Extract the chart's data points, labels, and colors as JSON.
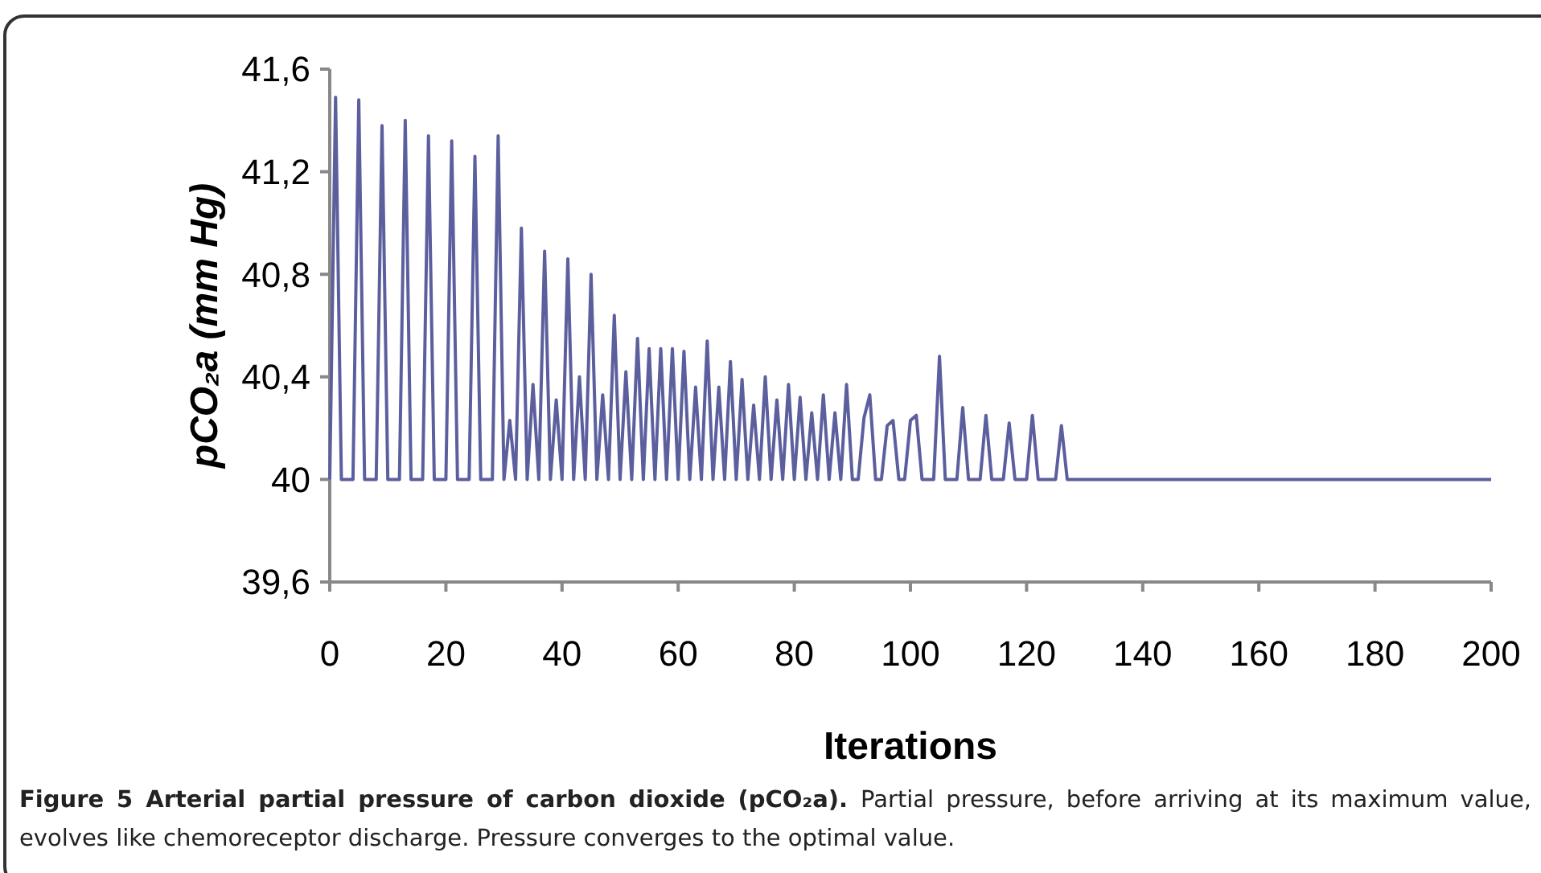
{
  "chart_data": {
    "type": "line",
    "xlabel": "Iterations",
    "ylabel": "pCO₂a (mm Hg)",
    "annotations": [
      "Figure 5 Arterial partial pressure of carbon dioxide (pCO₂a).",
      "Partial pressure, before arriving at its maximum value, evolves like chemoreceptor discharge. Pressure converges to the optimal value."
    ],
    "xlim": [
      0,
      200
    ],
    "xticks": [
      0,
      20,
      40,
      60,
      80,
      100,
      120,
      140,
      160,
      180,
      200
    ],
    "ylim": [
      39.6,
      41.6
    ],
    "yticks": [
      {
        "value": 39.6,
        "label": "39,6"
      },
      {
        "value": 40,
        "label": "40"
      },
      {
        "value": 40.4,
        "label": "40,4"
      },
      {
        "value": 40.8,
        "label": "40,8"
      },
      {
        "value": 41.2,
        "label": "41,2"
      },
      {
        "value": 41.6,
        "label": "41,6"
      }
    ],
    "grid": false,
    "marker": "none",
    "line_style": "solid",
    "series": [
      {
        "color": "#5c5f9e",
        "x": [
          0,
          1,
          2,
          4,
          5,
          6,
          8,
          9,
          10,
          12,
          13,
          14,
          16,
          17,
          18,
          20,
          21,
          22,
          24,
          25,
          26,
          28,
          29,
          30,
          31,
          32,
          33,
          34,
          35,
          36,
          37,
          38,
          39,
          40,
          41,
          42,
          43,
          44,
          45,
          46,
          47,
          48,
          49,
          50,
          51,
          52,
          53,
          54,
          55,
          56,
          57,
          58,
          59,
          60,
          61,
          62,
          63,
          64,
          65,
          66,
          67,
          68,
          69,
          70,
          71,
          72,
          73,
          74,
          75,
          76,
          77,
          78,
          79,
          80,
          81,
          82,
          83,
          84,
          85,
          86,
          87,
          88,
          89,
          90,
          91,
          92,
          93,
          94,
          95,
          96,
          97,
          98,
          99,
          100,
          101,
          102,
          104,
          105,
          106,
          108,
          109,
          110,
          112,
          113,
          114,
          116,
          117,
          118,
          120,
          121,
          122,
          125,
          126,
          127,
          200
        ],
        "values": [
          40,
          41.49,
          40,
          40,
          41.48,
          40,
          40,
          41.38,
          40,
          40,
          41.4,
          40,
          40,
          41.34,
          40,
          40,
          41.32,
          40,
          40,
          41.26,
          40,
          40,
          41.34,
          40,
          40.23,
          40,
          40.98,
          40,
          40.37,
          40,
          40.89,
          40,
          40.31,
          40,
          40.86,
          40,
          40.4,
          40,
          40.8,
          40,
          40.33,
          40,
          40.64,
          40,
          40.42,
          40,
          40.55,
          40,
          40.51,
          40,
          40.51,
          40,
          40.51,
          40,
          40.5,
          40,
          40.36,
          40,
          40.54,
          40,
          40.36,
          40,
          40.46,
          40,
          40.39,
          40,
          40.29,
          40,
          40.4,
          40,
          40.31,
          40,
          40.37,
          40,
          40.32,
          40,
          40.26,
          40,
          40.33,
          40,
          40.26,
          40,
          40.37,
          40,
          40,
          40.24,
          40.33,
          40,
          40,
          40.21,
          40.23,
          40,
          40,
          40.23,
          40.25,
          40,
          40,
          40.48,
          40,
          40,
          40.28,
          40,
          40,
          40.25,
          40,
          40,
          40.22,
          40,
          40,
          40.25,
          40,
          40,
          40.21,
          40,
          40
        ]
      }
    ]
  }
}
